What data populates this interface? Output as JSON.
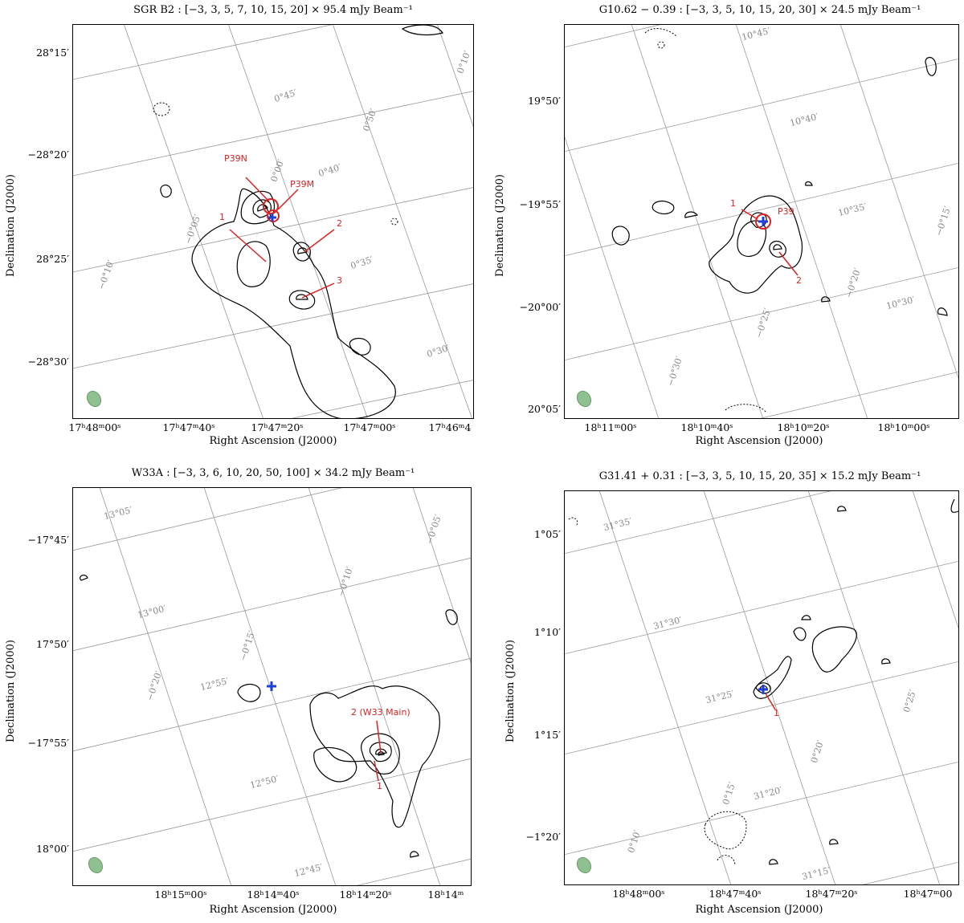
{
  "panels": [
    {
      "title": "SGR B2 : [−3, 3, 5, 7, 10, 15, 20] × 95.4 mJy Beam⁻¹",
      "x_ticks": [
        "17ʰ48ᵐ00ˢ",
        "17ʰ47ᵐ40ˢ",
        "17ʰ47ᵐ20ˢ",
        "17ʰ47ᵐ00ˢ",
        "17ʰ46ᵐ4"
      ],
      "y_ticks": [
        "28°15′",
        "−28°20′",
        "28°25′",
        "−28°30′"
      ],
      "xlabel": "Right Ascension (J2000)",
      "ylabel": "Declination (J2000)",
      "grid_labels": [
        "0°45′",
        "0°50′",
        "0°40′",
        "0°00′",
        "−0°05′",
        "0°35′",
        "−0°10′",
        "0°30′",
        "0°10′"
      ],
      "source_labels": [
        "P39N",
        "P39M",
        "1",
        "2",
        "3"
      ]
    },
    {
      "title": "G10.62 − 0.39 : [−3, 3, 5, 10, 15, 20, 30] × 24.5 mJy Beam⁻¹",
      "x_ticks": [
        "18ʰ11ᵐ00ˢ",
        "18ʰ10ᵐ40ˢ",
        "18ʰ10ᵐ20ˢ",
        "18ʰ10ᵐ00ˢ"
      ],
      "y_ticks": [
        "19°50′",
        "−19°55′",
        "−20°00′",
        "20°05′"
      ],
      "xlabel": "Right Ascension (J2000)",
      "ylabel": "Declination (J2000)",
      "grid_labels": [
        "10°45′",
        "10°40′",
        "10°35′",
        "−0°15′",
        "−0°20′",
        "−0°25′",
        "10°30′",
        "−0°30′"
      ],
      "source_labels": [
        "1",
        "P39",
        "2"
      ]
    },
    {
      "title": "W33A : [−3, 3, 6, 10, 20, 50, 100] × 34.2 mJy Beam⁻¹",
      "x_ticks": [
        "18ʰ15ᵐ00ˢ",
        "18ʰ14ᵐ40ˢ",
        "18ʰ14ᵐ20ˢ",
        "18ʰ14ᵐ"
      ],
      "y_ticks": [
        "−17°45′",
        "17°50′",
        "−17°55′",
        "18°00′"
      ],
      "xlabel": "Right Ascension (J2000)",
      "ylabel": "Declination (J2000)",
      "grid_labels": [
        "13°05′",
        "13°00′",
        "−0°05′",
        "−0°10′",
        "12°55′",
        "−0°15′",
        "−0°20′",
        "12°50′",
        "12°45′"
      ],
      "source_labels": [
        "2 (W33 Main)",
        "1"
      ]
    },
    {
      "title": "G31.41 + 0.31 : [−3, 3, 5, 10, 15, 20, 35] × 15.2 mJy Beam⁻¹",
      "x_ticks": [
        "18ʰ48ᵐ00ˢ",
        "18ʰ47ᵐ40ˢ",
        "18ʰ47ᵐ20ˢ",
        "18ʰ47ᵐ00"
      ],
      "y_ticks": [
        "1°05′",
        "1°10′",
        "1°15′",
        "−1°20′"
      ],
      "xlabel": "Right Ascension (J2000)",
      "ylabel": "Declination (J2000)",
      "grid_labels": [
        "31°35′",
        "31°30′",
        "31°25′",
        "0°20′",
        "0°15′",
        "31°20′",
        "0°10′",
        "31°15′",
        "0°25′"
      ],
      "source_labels": [
        "1"
      ]
    }
  ],
  "colors": {
    "contour": "#000000",
    "grid": "#9a9a9a",
    "marker": "#1f3fd6",
    "source": "#d22222",
    "beam": "#8fc08f"
  }
}
